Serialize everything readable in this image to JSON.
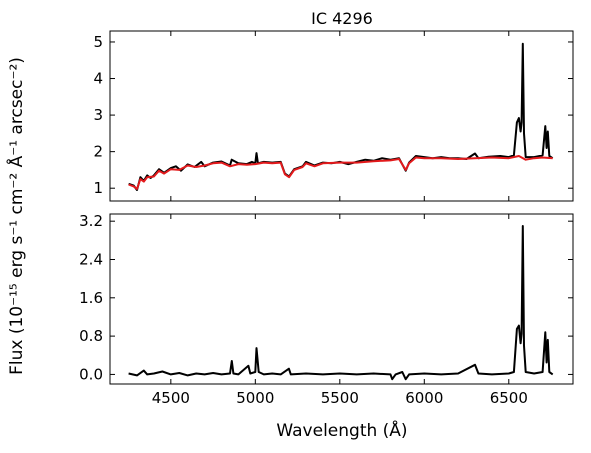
{
  "chart_data": [
    {
      "type": "line",
      "title": "IC 4296",
      "xlim": [
        4140,
        6880
      ],
      "ylim": [
        0.65,
        5.3
      ],
      "x_ticks": [
        4500,
        5000,
        5500,
        6000,
        6500
      ],
      "y_ticks": [
        1,
        2,
        3,
        4,
        5
      ],
      "y_tick_labels": [
        "1",
        "2",
        "3",
        "4",
        "5"
      ],
      "grid": false,
      "series": [
        {
          "color": "#000000",
          "points": [
            [
              4250,
              1.12
            ],
            [
              4280,
              1.07
            ],
            [
              4300,
              0.95
            ],
            [
              4320,
              1.3
            ],
            [
              4340,
              1.2
            ],
            [
              4360,
              1.35
            ],
            [
              4380,
              1.28
            ],
            [
              4400,
              1.35
            ],
            [
              4430,
              1.52
            ],
            [
              4460,
              1.42
            ],
            [
              4500,
              1.55
            ],
            [
              4530,
              1.6
            ],
            [
              4560,
              1.48
            ],
            [
              4600,
              1.65
            ],
            [
              4640,
              1.58
            ],
            [
              4680,
              1.72
            ],
            [
              4700,
              1.6
            ],
            [
              4750,
              1.7
            ],
            [
              4800,
              1.73
            ],
            [
              4850,
              1.62
            ],
            [
              4860,
              1.78
            ],
            [
              4900,
              1.68
            ],
            [
              4950,
              1.66
            ],
            [
              4980,
              1.72
            ],
            [
              5000,
              1.68
            ],
            [
              5007,
              1.96
            ],
            [
              5015,
              1.68
            ],
            [
              5050,
              1.72
            ],
            [
              5100,
              1.7
            ],
            [
              5150,
              1.72
            ],
            [
              5175,
              1.4
            ],
            [
              5200,
              1.32
            ],
            [
              5230,
              1.52
            ],
            [
              5280,
              1.6
            ],
            [
              5300,
              1.72
            ],
            [
              5350,
              1.62
            ],
            [
              5400,
              1.7
            ],
            [
              5450,
              1.68
            ],
            [
              5500,
              1.72
            ],
            [
              5550,
              1.66
            ],
            [
              5600,
              1.72
            ],
            [
              5650,
              1.78
            ],
            [
              5700,
              1.75
            ],
            [
              5750,
              1.82
            ],
            [
              5800,
              1.78
            ],
            [
              5850,
              1.82
            ],
            [
              5890,
              1.48
            ],
            [
              5910,
              1.7
            ],
            [
              5950,
              1.88
            ],
            [
              6000,
              1.85
            ],
            [
              6050,
              1.82
            ],
            [
              6100,
              1.85
            ],
            [
              6150,
              1.82
            ],
            [
              6200,
              1.82
            ],
            [
              6250,
              1.8
            ],
            [
              6300,
              1.95
            ],
            [
              6320,
              1.82
            ],
            [
              6380,
              1.86
            ],
            [
              6450,
              1.88
            ],
            [
              6500,
              1.85
            ],
            [
              6530,
              1.9
            ],
            [
              6548,
              2.8
            ],
            [
              6560,
              2.92
            ],
            [
              6570,
              2.55
            ],
            [
              6576,
              2.8
            ],
            [
              6583,
              4.95
            ],
            [
              6590,
              2.5
            ],
            [
              6600,
              1.85
            ],
            [
              6650,
              1.85
            ],
            [
              6700,
              1.9
            ],
            [
              6716,
              2.7
            ],
            [
              6724,
              2.1
            ],
            [
              6731,
              2.55
            ],
            [
              6740,
              1.88
            ],
            [
              6760,
              1.82
            ]
          ]
        },
        {
          "color": "#e31a1c",
          "points": [
            [
              4250,
              1.1
            ],
            [
              4280,
              1.05
            ],
            [
              4300,
              0.98
            ],
            [
              4320,
              1.25
            ],
            [
              4340,
              1.18
            ],
            [
              4360,
              1.3
            ],
            [
              4400,
              1.32
            ],
            [
              4430,
              1.48
            ],
            [
              4460,
              1.4
            ],
            [
              4500,
              1.52
            ],
            [
              4550,
              1.5
            ],
            [
              4600,
              1.62
            ],
            [
              4650,
              1.58
            ],
            [
              4700,
              1.62
            ],
            [
              4750,
              1.68
            ],
            [
              4800,
              1.7
            ],
            [
              4850,
              1.6
            ],
            [
              4900,
              1.66
            ],
            [
              4950,
              1.64
            ],
            [
              5000,
              1.66
            ],
            [
              5050,
              1.7
            ],
            [
              5100,
              1.68
            ],
            [
              5150,
              1.7
            ],
            [
              5175,
              1.38
            ],
            [
              5200,
              1.3
            ],
            [
              5230,
              1.5
            ],
            [
              5280,
              1.58
            ],
            [
              5300,
              1.68
            ],
            [
              5350,
              1.6
            ],
            [
              5400,
              1.68
            ],
            [
              5500,
              1.7
            ],
            [
              5600,
              1.7
            ],
            [
              5700,
              1.74
            ],
            [
              5800,
              1.76
            ],
            [
              5850,
              1.8
            ],
            [
              5890,
              1.5
            ],
            [
              5910,
              1.68
            ],
            [
              5950,
              1.84
            ],
            [
              6000,
              1.82
            ],
            [
              6100,
              1.82
            ],
            [
              6200,
              1.8
            ],
            [
              6300,
              1.82
            ],
            [
              6400,
              1.84
            ],
            [
              6500,
              1.82
            ],
            [
              6560,
              1.88
            ],
            [
              6600,
              1.78
            ],
            [
              6650,
              1.82
            ],
            [
              6700,
              1.84
            ],
            [
              6760,
              1.82
            ]
          ]
        }
      ]
    },
    {
      "type": "line",
      "xlabel": "Wavelength (Å)",
      "xlim": [
        4140,
        6880
      ],
      "ylim": [
        -0.2,
        3.35
      ],
      "x_ticks": [
        4500,
        5000,
        5500,
        6000,
        6500
      ],
      "x_tick_labels": [
        "4500",
        "5000",
        "5500",
        "6000",
        "6500"
      ],
      "y_ticks": [
        0,
        0.8,
        1.6,
        2.4,
        3.2
      ],
      "y_tick_labels": [
        "0.0",
        "0.8",
        "1.6",
        "2.4",
        "3.2"
      ],
      "grid": false,
      "series": [
        {
          "color": "#000000",
          "points": [
            [
              4250,
              0.02
            ],
            [
              4300,
              -0.02
            ],
            [
              4340,
              0.08
            ],
            [
              4360,
              0.0
            ],
            [
              4400,
              0.02
            ],
            [
              4450,
              0.06
            ],
            [
              4500,
              0.0
            ],
            [
              4550,
              0.03
            ],
            [
              4600,
              -0.02
            ],
            [
              4650,
              0.02
            ],
            [
              4700,
              0.0
            ],
            [
              4750,
              0.03
            ],
            [
              4800,
              0.0
            ],
            [
              4850,
              0.02
            ],
            [
              4861,
              0.28
            ],
            [
              4870,
              0.02
            ],
            [
              4900,
              0.0
            ],
            [
              4959,
              0.18
            ],
            [
              4970,
              0.02
            ],
            [
              5000,
              0.05
            ],
            [
              5007,
              0.55
            ],
            [
              5020,
              0.05
            ],
            [
              5050,
              0.0
            ],
            [
              5100,
              0.02
            ],
            [
              5150,
              0.0
            ],
            [
              5199,
              0.12
            ],
            [
              5210,
              0.0
            ],
            [
              5300,
              0.02
            ],
            [
              5400,
              0.0
            ],
            [
              5500,
              0.02
            ],
            [
              5600,
              0.0
            ],
            [
              5700,
              0.02
            ],
            [
              5800,
              0.0
            ],
            [
              5810,
              -0.1
            ],
            [
              5830,
              0.0
            ],
            [
              5870,
              0.05
            ],
            [
              5890,
              -0.1
            ],
            [
              5910,
              0.0
            ],
            [
              6000,
              0.02
            ],
            [
              6100,
              0.0
            ],
            [
              6200,
              0.02
            ],
            [
              6300,
              0.2
            ],
            [
              6320,
              0.02
            ],
            [
              6400,
              0.0
            ],
            [
              6500,
              0.02
            ],
            [
              6530,
              0.05
            ],
            [
              6548,
              0.95
            ],
            [
              6560,
              1.02
            ],
            [
              6570,
              0.65
            ],
            [
              6576,
              0.85
            ],
            [
              6583,
              3.1
            ],
            [
              6590,
              0.6
            ],
            [
              6600,
              0.05
            ],
            [
              6650,
              0.02
            ],
            [
              6700,
              0.05
            ],
            [
              6716,
              0.88
            ],
            [
              6724,
              0.25
            ],
            [
              6731,
              0.72
            ],
            [
              6740,
              0.05
            ],
            [
              6760,
              0.0
            ]
          ]
        }
      ]
    }
  ],
  "shared_ylabel": "Flux (10⁻¹⁵ erg s⁻¹ cm⁻² Å⁻¹ arcsec⁻²)"
}
